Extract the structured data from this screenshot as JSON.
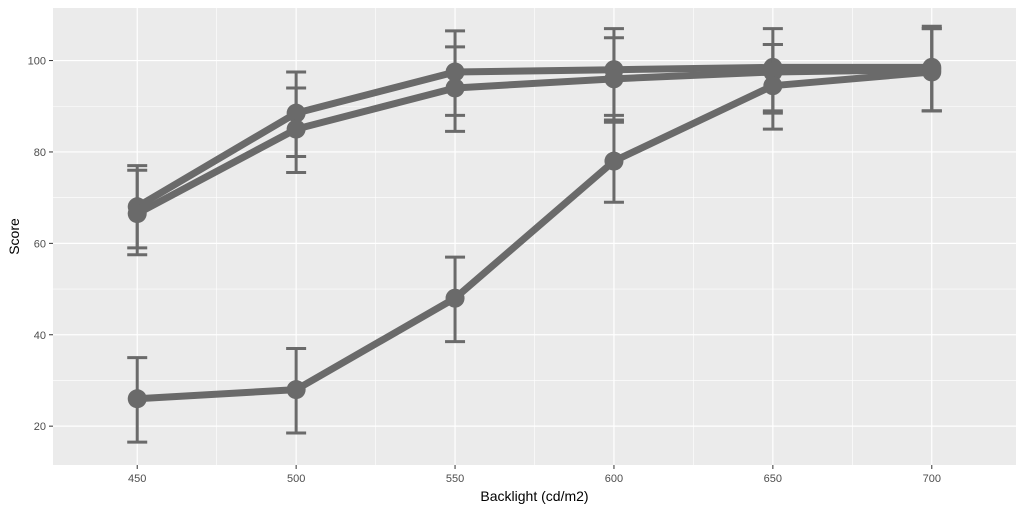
{
  "chart_data": {
    "type": "line",
    "title": "",
    "xlabel": "Backlight (cd/m2)",
    "ylabel": "Score",
    "x": [
      450,
      500,
      550,
      600,
      650,
      700
    ],
    "xlim": [
      423.5,
      726.5
    ],
    "ylim": [
      11.5,
      111.5
    ],
    "x_ticks": [
      450,
      500,
      550,
      600,
      650,
      700
    ],
    "x_tick_labels": [
      "450",
      "500",
      "550",
      "600",
      "650",
      "700"
    ],
    "y_ticks": [
      20,
      40,
      60,
      80,
      100
    ],
    "y_tick_labels": [
      "20",
      "40",
      "60",
      "80",
      "100"
    ],
    "grid": true,
    "legend": "none",
    "series": [
      {
        "values": [
          68.0,
          88.5,
          97.5,
          98.0,
          98.5,
          98.5
        ],
        "err_low": [
          59.0,
          79.0,
          88.0,
          87.0,
          89.0,
          89.0
        ],
        "err_high": [
          77.0,
          97.5,
          106.5,
          107.0,
          107.0,
          107.5
        ]
      },
      {
        "values": [
          66.5,
          85.0,
          94.0,
          96.0,
          97.5,
          98.0
        ],
        "err_low": [
          57.5,
          75.5,
          84.5,
          86.5,
          88.5,
          89.0
        ],
        "err_high": [
          76.0,
          94.0,
          103.0,
          105.0,
          103.5,
          107.0
        ]
      },
      {
        "values": [
          26.0,
          28.0,
          48.0,
          78.0,
          94.5,
          97.5
        ],
        "err_low": [
          16.5,
          18.5,
          38.5,
          69.0,
          85.0,
          89.0
        ],
        "err_high": [
          35.0,
          37.0,
          57.0,
          88.0,
          103.5,
          107.0
        ]
      }
    ],
    "colors": {
      "panel": "#EBEBEB",
      "grid": "#FFFFFF",
      "series": "#6A6A6A",
      "tick_text": "#4D4D4D",
      "tick_mark": "#333333"
    }
  }
}
